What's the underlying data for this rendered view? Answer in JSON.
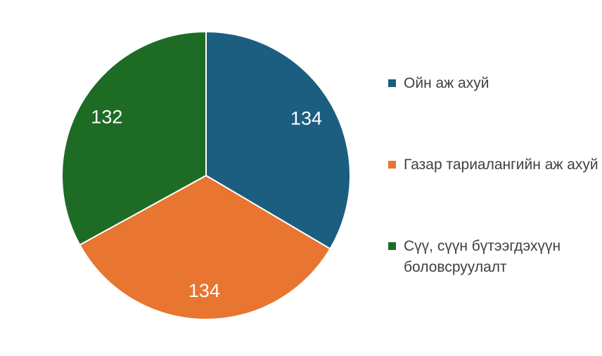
{
  "chart_data": {
    "type": "pie",
    "title": "",
    "slices": [
      {
        "label": "Ойн аж ахуй",
        "value": 134,
        "color": "#1b5e80"
      },
      {
        "label": "Газар тариалангийн аж ахуй",
        "value": 134,
        "color": "#e87530"
      },
      {
        "label": "Сүү, сүүн бүтээгдэхүүн боловсруулалт",
        "value": 132,
        "color": "#1e6b26"
      }
    ],
    "start_angle": "12 o'clock",
    "direction": "clockwise",
    "data_labels": true,
    "legend": "right"
  }
}
